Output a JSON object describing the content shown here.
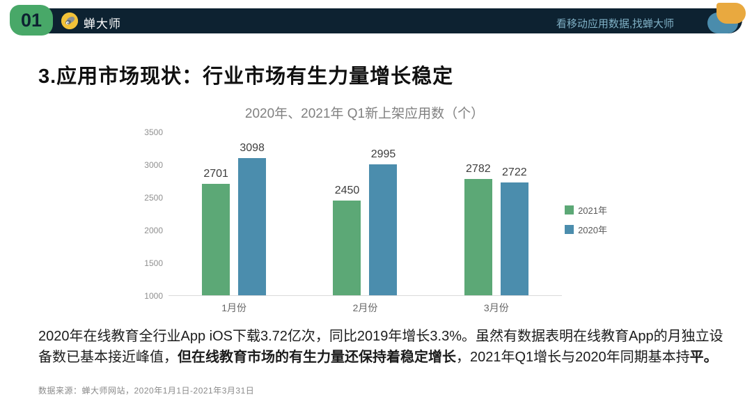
{
  "header": {
    "page_number": "01",
    "brand": "蝉大师",
    "tagline": "看移动应用数据,找蝉大师"
  },
  "title": "3.应用市场现状：行业市场有生力量增长稳定",
  "chart_data": {
    "type": "bar",
    "title": "2020年、2021年 Q1新上架应用数（个）",
    "categories": [
      "1月份",
      "2月份",
      "3月份"
    ],
    "series": [
      {
        "name": "2021年",
        "color": "#5ca876",
        "values": [
          2701,
          2450,
          2782
        ]
      },
      {
        "name": "2020年",
        "color": "#4b8dad",
        "values": [
          3098,
          2995,
          2722
        ]
      }
    ],
    "ylim": [
      1000,
      3500
    ],
    "yticks": [
      1000,
      1500,
      2000,
      2500,
      3000,
      3500
    ],
    "grid": false,
    "legend_position": "right",
    "xlabel": "",
    "ylabel": ""
  },
  "paragraph": {
    "part1": "2020年在线教育全行业App iOS下载3.72亿次，同比2019年增长3.3%。虽然有数据表明在线教育App的月独立设备数已基本接近峰值，",
    "part2_bold": "但在线教育市场的有生力量还保持着稳定增长",
    "part3": "，2021年Q1增长与2020年同期基本持",
    "part4_bold": "平。"
  },
  "footer": {
    "source": "数据来源：蝉大师网站，2020年1月1日-2021年3月31日"
  },
  "colors": {
    "header_bg": "#0d2231",
    "badge_green": "#48a868",
    "accent_yellow": "#e9a93f",
    "accent_blue": "#4a8cac",
    "bar_green": "#5ca876",
    "bar_blue": "#4b8dad"
  }
}
